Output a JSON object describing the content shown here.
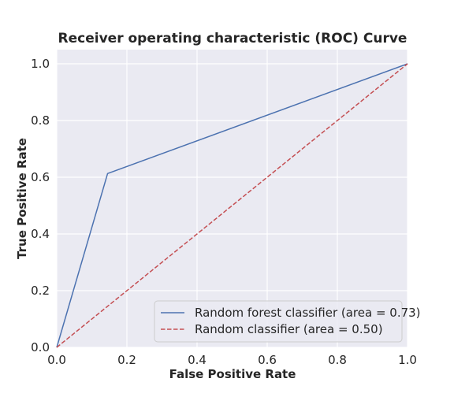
{
  "chart_data": {
    "type": "line",
    "title": "Receiver operating characteristic (ROC) Curve",
    "xlabel": "False Positive Rate",
    "ylabel": "True Positive Rate",
    "xlim": [
      0,
      1
    ],
    "ylim": [
      0,
      1.05
    ],
    "x_ticks": [
      "0.0",
      "0.2",
      "0.4",
      "0.6",
      "0.8",
      "1.0"
    ],
    "y_ticks": [
      "0.0",
      "0.2",
      "0.4",
      "0.6",
      "0.8",
      "1.0"
    ],
    "grid": true,
    "background": "#eaeaf2",
    "legend_position": "lower-right",
    "series": [
      {
        "name": "Random forest classifier (area = 0.73)",
        "color": "#4c72b0",
        "style": "solid",
        "x": [
          0.0,
          0.145,
          1.0
        ],
        "y": [
          0.0,
          0.613,
          1.0
        ]
      },
      {
        "name": "Random classifier (area = 0.50)",
        "color": "#c44e52",
        "style": "dashed",
        "x": [
          0.0,
          1.0
        ],
        "y": [
          0.0,
          1.0
        ]
      }
    ]
  }
}
